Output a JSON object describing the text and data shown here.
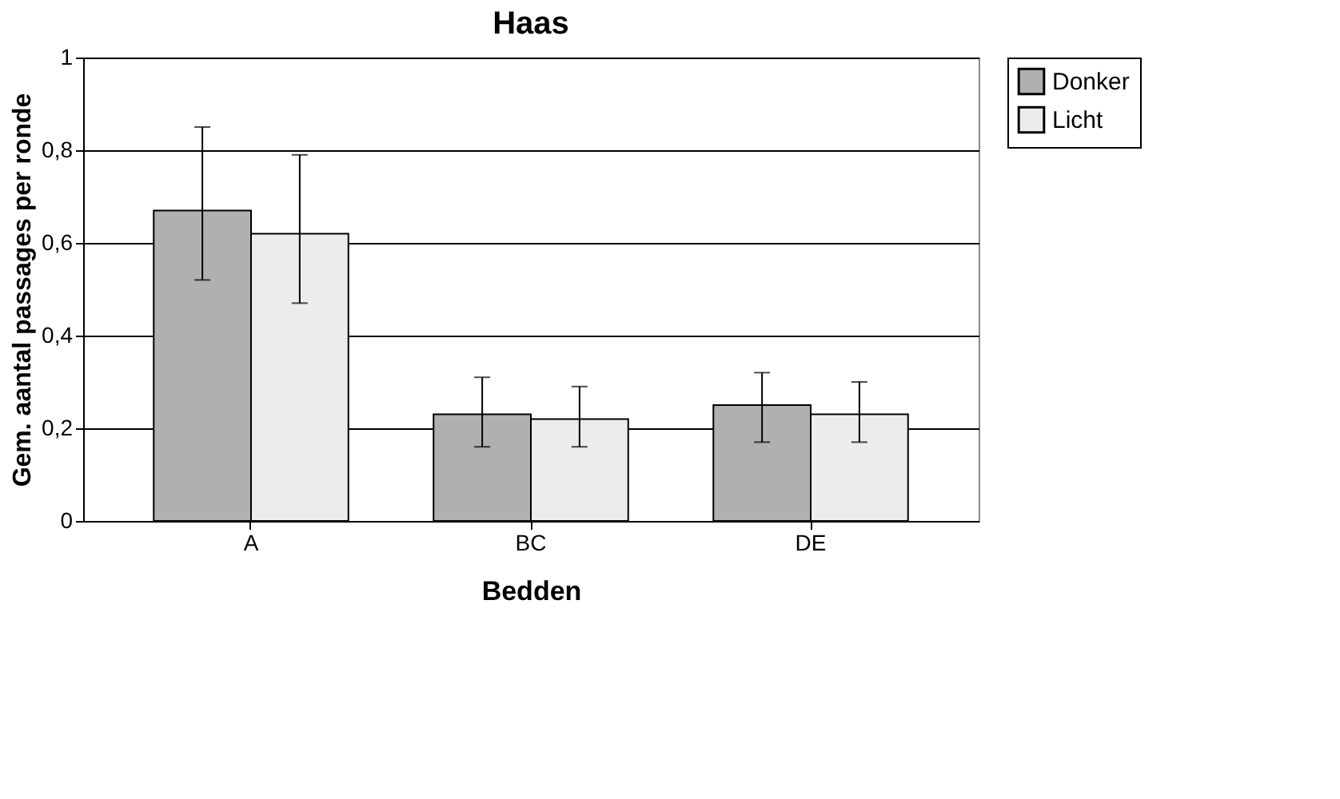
{
  "chart_data": {
    "type": "bar",
    "title": "Haas",
    "xlabel": "Bedden",
    "ylabel": "Gem. aantal passages per ronde",
    "categories": [
      "A",
      "BC",
      "DE"
    ],
    "series": [
      {
        "name": "Donker",
        "color": "#b0b0b0",
        "values": [
          0.67,
          0.23,
          0.25
        ],
        "errors": [
          [
            0.52,
            0.85
          ],
          [
            0.16,
            0.31
          ],
          [
            0.17,
            0.32
          ]
        ]
      },
      {
        "name": "Licht",
        "color": "#ececec",
        "values": [
          0.62,
          0.22,
          0.23
        ],
        "errors": [
          [
            0.47,
            0.79
          ],
          [
            0.16,
            0.29
          ],
          [
            0.17,
            0.3
          ]
        ]
      }
    ],
    "ylim": [
      0,
      1
    ],
    "yticks": [
      0,
      {
        "value": 0.2,
        "label": "0,2"
      },
      {
        "value": 0.4,
        "label": "0,4"
      },
      {
        "value": 0.6,
        "label": "0,6"
      },
      {
        "value": 0.8,
        "label": "0,8"
      },
      1
    ],
    "grid": "y",
    "legend": "right"
  }
}
